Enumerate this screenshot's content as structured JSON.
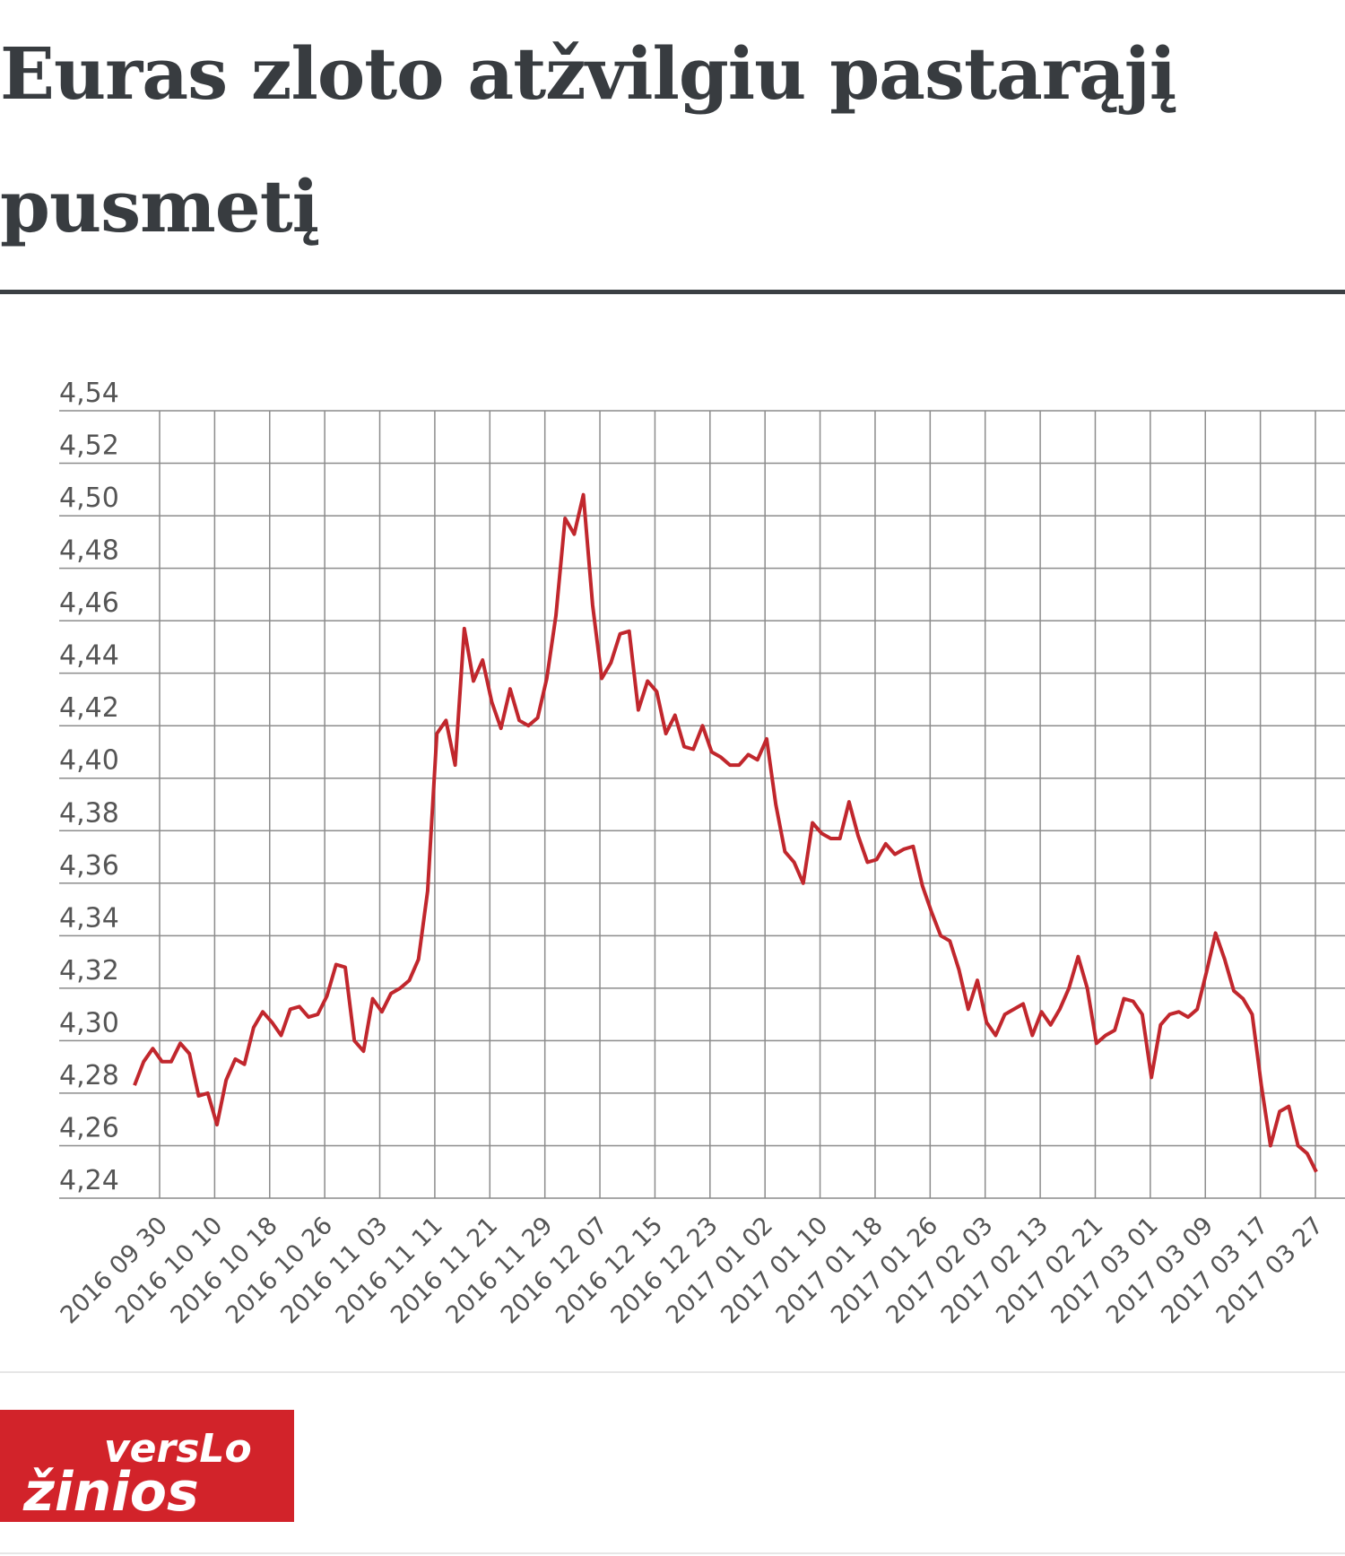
{
  "title": "Euras zloto atžvilgiu pastarąjį pusmetį",
  "logo": {
    "line1": "versLo",
    "line2": "žinios"
  },
  "colors": {
    "line": "#c1272d",
    "grid": "#8c8c8c",
    "logo_bg": "#d2232a"
  },
  "chart_data": {
    "type": "line",
    "title": "Euras zloto atžvilgiu pastarąjį pusmetį",
    "xlabel": "",
    "ylabel": "",
    "ylim": [
      4.24,
      4.54
    ],
    "yticks": [
      "4,54",
      "4,52",
      "4,50",
      "4,48",
      "4,46",
      "4,44",
      "4,42",
      "4,40",
      "4,38",
      "4,36",
      "4,34",
      "4,32",
      "4,30",
      "4,28",
      "4,26",
      "4,24"
    ],
    "xticks": [
      "2016 09 30",
      "2016 10 10",
      "2016 10 18",
      "2016 10 26",
      "2016 11 03",
      "2016 11 11",
      "2016 11 21",
      "2016 11 29",
      "2016 12 07",
      "2016 12 15",
      "2016 12 23",
      "2017 01 02",
      "2017 01 10",
      "2017 01 18",
      "2017 01 26",
      "2017 02 03",
      "2017 02 13",
      "2017 02 21",
      "2017 03 01",
      "2017 03 09",
      "2017 03 17",
      "2017 03 27"
    ],
    "grid": true,
    "legend": "none",
    "series": [
      {
        "values": [
          4.283,
          4.292,
          4.297,
          4.292,
          4.292,
          4.299,
          4.295,
          4.279,
          4.28,
          4.268,
          4.285,
          4.293,
          4.291,
          4.305,
          4.311,
          4.307,
          4.302,
          4.312,
          4.313,
          4.309,
          4.31,
          4.317,
          4.329,
          4.328,
          4.3,
          4.296,
          4.316,
          4.311,
          4.318,
          4.32,
          4.323,
          4.331,
          4.357,
          4.417,
          4.422,
          4.405,
          4.457,
          4.437,
          4.445,
          4.429,
          4.419,
          4.434,
          4.422,
          4.42,
          4.423,
          4.438,
          4.462,
          4.499,
          4.493,
          4.508,
          4.466,
          4.438,
          4.444,
          4.455,
          4.456,
          4.426,
          4.437,
          4.433,
          4.417,
          4.424,
          4.412,
          4.411,
          4.42,
          4.41,
          4.408,
          4.405,
          4.405,
          4.409,
          4.407,
          4.415,
          4.39,
          4.372,
          4.368,
          4.36,
          4.383,
          4.379,
          4.377,
          4.377,
          4.391,
          4.378,
          4.368,
          4.369,
          4.375,
          4.371,
          4.373,
          4.374,
          4.359,
          4.349,
          4.34,
          4.338,
          4.327,
          4.312,
          4.323,
          4.307,
          4.302,
          4.31,
          4.312,
          4.314,
          4.302,
          4.311,
          4.306,
          4.312,
          4.32,
          4.332,
          4.32,
          4.299,
          4.302,
          4.304,
          4.316,
          4.315,
          4.31,
          4.286,
          4.306,
          4.31,
          4.311,
          4.309,
          4.312,
          4.326,
          4.341,
          4.331,
          4.319,
          4.316,
          4.31,
          4.283,
          4.26,
          4.273,
          4.275,
          4.26,
          4.257,
          4.25
        ]
      }
    ]
  }
}
